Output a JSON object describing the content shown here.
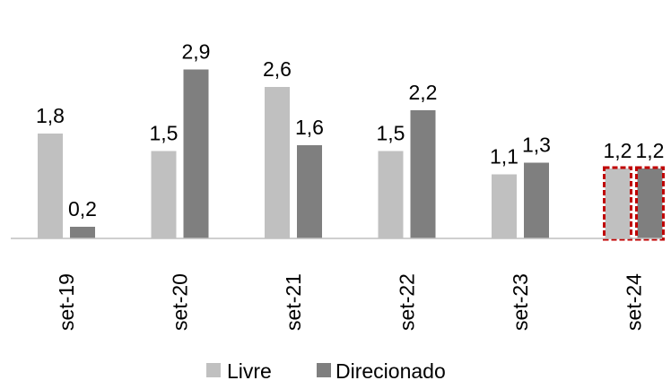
{
  "chart_data": {
    "type": "bar",
    "title": "",
    "xlabel": "",
    "ylabel": "",
    "categories": [
      "set-19",
      "set-20",
      "set-21",
      "set-22",
      "set-23",
      "set-24"
    ],
    "series": [
      {
        "name": "Livre",
        "color": "#c0c0c0",
        "values": [
          1.8,
          1.5,
          2.6,
          1.5,
          1.1,
          1.2
        ],
        "labels": [
          "1,8",
          "1,5",
          "2,6",
          "1,5",
          "1,1",
          "1,2"
        ]
      },
      {
        "name": "Direcionado",
        "color": "#7f7f7f",
        "values": [
          0.2,
          2.9,
          1.6,
          2.2,
          1.3,
          1.2
        ],
        "labels": [
          "0,2",
          "2,9",
          "1,6",
          "2,2",
          "1,3",
          "1,2"
        ]
      }
    ],
    "ylim": [
      0,
      3.0
    ],
    "grid": false,
    "legend": "bottom",
    "highlight": {
      "category": "set-24",
      "color": "#c00000",
      "style": "dashed"
    }
  }
}
